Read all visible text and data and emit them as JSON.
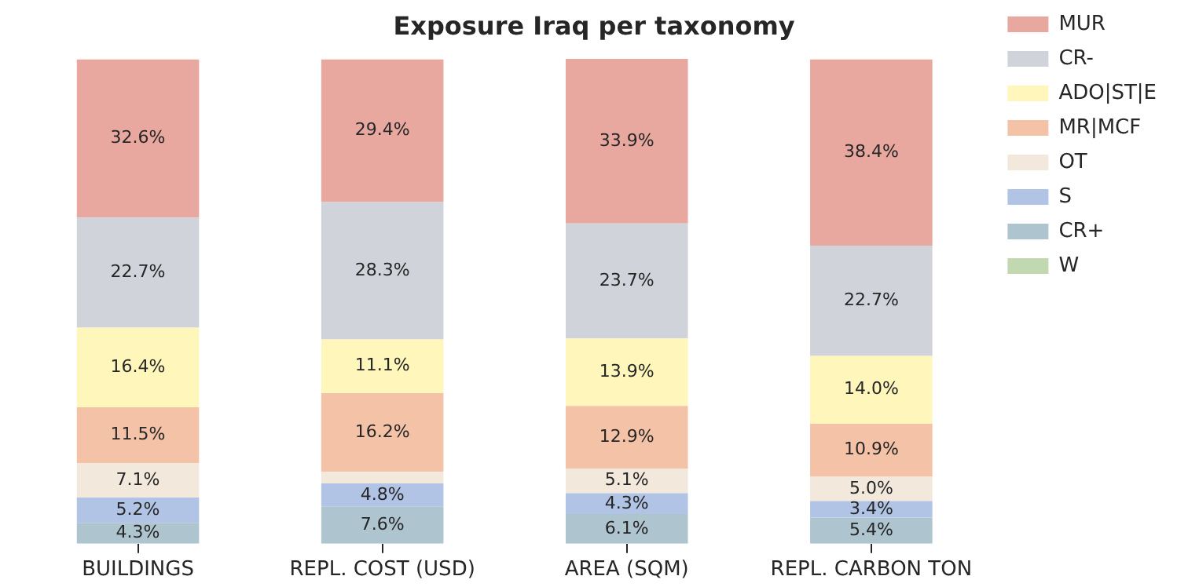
{
  "chart_data": {
    "type": "bar",
    "title": "Exposure Iraq per taxonomy",
    "stacked": true,
    "categories": [
      "BUILDINGS",
      "REPL. COST (USD)",
      "AREA (SQM)",
      "REPL. CARBON TON"
    ],
    "ylim": [
      0,
      100
    ],
    "tick_labels": "x",
    "grid": false,
    "legend": "right",
    "series": [
      {
        "name": "W",
        "color": "#c2d8b0",
        "values": [
          null,
          null,
          null,
          null
        ],
        "value_labels": [
          null,
          null,
          null,
          null
        ]
      },
      {
        "name": "CR+",
        "color": "#aec5cf",
        "values": [
          4.3,
          7.6,
          6.1,
          5.4
        ],
        "value_labels": [
          "4.3%",
          "7.6%",
          "6.1%",
          "5.4%"
        ]
      },
      {
        "name": "S",
        "color": "#b1c4e6",
        "values": [
          5.2,
          4.8,
          4.3,
          3.4
        ],
        "value_labels": [
          "5.2%",
          "4.8%",
          "4.3%",
          "3.4%"
        ]
      },
      {
        "name": "OT",
        "color": "#f3e8dc",
        "values": [
          7.1,
          2.4,
          5.1,
          5.0
        ],
        "value_labels": [
          "7.1%",
          null,
          "5.1%",
          "5.0%"
        ]
      },
      {
        "name": "MR|MCF",
        "color": "#f4c2a6",
        "values": [
          11.5,
          16.2,
          12.9,
          10.9
        ],
        "value_labels": [
          "11.5%",
          "16.2%",
          "12.9%",
          "10.9%"
        ]
      },
      {
        "name": "ADO|ST|E",
        "color": "#fff6bb",
        "values": [
          16.4,
          11.1,
          13.9,
          14.0
        ],
        "value_labels": [
          "16.4%",
          "11.1%",
          "13.9%",
          "14.0%"
        ]
      },
      {
        "name": "CR-",
        "color": "#d0d3da",
        "values": [
          22.7,
          28.3,
          23.7,
          22.7
        ],
        "value_labels": [
          "22.7%",
          "28.3%",
          "23.7%",
          "22.7%"
        ]
      },
      {
        "name": "MUR",
        "color": "#e8a8a0",
        "values": [
          32.6,
          29.4,
          33.9,
          38.4
        ],
        "value_labels": [
          "32.6%",
          "29.4%",
          "33.9%",
          "38.4%"
        ]
      }
    ]
  }
}
